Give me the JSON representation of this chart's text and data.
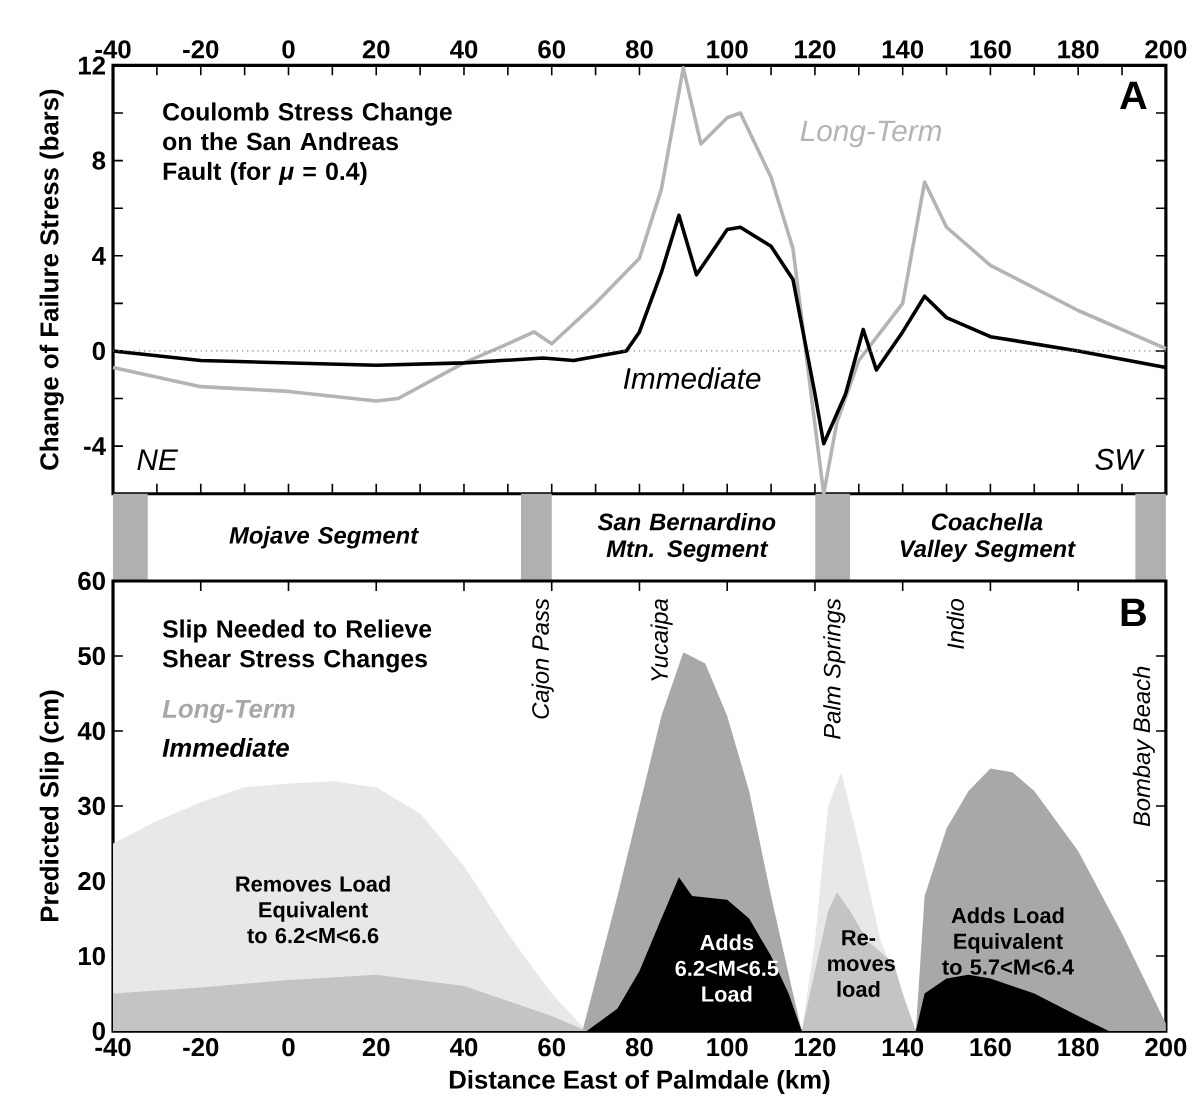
{
  "chart_data": [
    {
      "type": "line",
      "title": "Coulomb Stress Change on the San Andreas Fault (for *μ* = 0.4)",
      "ylabel": "Change of Failure Stress  (bars)",
      "xlim": [
        -40,
        200
      ],
      "xticks": [
        -40,
        {
          "value": -30,
          "label": null
        },
        -20,
        {
          "value": -10,
          "label": null
        },
        0,
        {
          "value": 10,
          "label": null
        },
        20,
        {
          "value": 30,
          "label": null
        },
        40,
        {
          "value": 50,
          "label": null
        },
        60,
        {
          "value": 70,
          "label": null
        },
        80,
        {
          "value": 90,
          "label": null
        },
        100,
        {
          "value": 110,
          "label": null
        },
        120,
        {
          "value": 130,
          "label": null
        },
        140,
        {
          "value": 150,
          "label": null
        },
        160,
        {
          "value": 170,
          "label": null
        },
        180,
        {
          "value": 190,
          "label": null
        },
        200
      ],
      "ylim": [
        -6,
        12
      ],
      "yticks": [
        -4,
        {
          "value": -2,
          "label": null
        },
        0,
        {
          "value": 2,
          "label": null
        },
        4,
        {
          "value": 6,
          "label": null
        },
        8,
        {
          "value": 10,
          "label": null
        },
        12
      ],
      "series": [
        {
          "name": "Long-Term",
          "color": "#b4b4b4",
          "x": [
            -40,
            -20,
            0,
            20,
            25,
            40,
            50,
            56,
            60,
            70,
            80,
            85,
            90,
            94,
            100,
            103,
            110,
            115,
            120,
            122,
            125,
            130,
            135,
            140,
            145,
            150,
            160,
            180,
            200
          ],
          "values": [
            -0.7,
            -1.5,
            -1.7,
            -2.1,
            -2.0,
            -0.5,
            0.3,
            0.8,
            0.3,
            2.0,
            3.9,
            6.8,
            11.9,
            8.7,
            9.8,
            10.0,
            7.3,
            4.3,
            -3.1,
            -6.0,
            -3.0,
            -0.4,
            0.8,
            2.0,
            7.1,
            5.2,
            3.6,
            1.7,
            0.1
          ]
        },
        {
          "name": "Immediate",
          "color": "#000000",
          "x": [
            -40,
            -20,
            0,
            20,
            40,
            58,
            65,
            77,
            80,
            85,
            89,
            93,
            100,
            103,
            110,
            115,
            120,
            122,
            127,
            131,
            134,
            140,
            145,
            150,
            160,
            180,
            200
          ],
          "values": [
            0,
            -0.4,
            -0.5,
            -0.6,
            -0.5,
            -0.3,
            -0.4,
            0,
            0.8,
            3.3,
            5.7,
            3.2,
            5.1,
            5.2,
            4.4,
            3.0,
            -1.8,
            -3.9,
            -1.8,
            0.9,
            -0.8,
            0.8,
            2.3,
            1.4,
            0.6,
            0,
            -0.7
          ]
        }
      ],
      "ref_lines": [
        {
          "axis": "y",
          "value": 0,
          "color": "#808080",
          "line_style": "dotted"
        }
      ],
      "annotations": [
        "A",
        "NE",
        "SW",
        "Mojave Segment",
        "San Bernardino Mtn. Segment",
        "Coachella Valley Segment"
      ]
    },
    {
      "type": "area",
      "title": "Slip Needed to Relieve Shear Stress Changes",
      "xlabel": "Distance East of Palmdale  (km)",
      "ylabel": "Predicted Slip  (cm)",
      "xlim": [
        -40,
        200
      ],
      "xticks": [
        -40,
        -20,
        0,
        20,
        40,
        60,
        80,
        100,
        120,
        140,
        160,
        180,
        200
      ],
      "ylim": [
        0,
        60
      ],
      "yticks": [
        0,
        10,
        20,
        30,
        40,
        50,
        60
      ],
      "legend": "top left",
      "series": [
        {
          "color": "#e8e8e8",
          "x": [
            -40,
            -30,
            -20,
            -10,
            0,
            10,
            20,
            30,
            40,
            50,
            60,
            68,
            90,
            117,
            120,
            123,
            126,
            130,
            135,
            140,
            143
          ],
          "values": [
            25,
            28,
            30.5,
            32.5,
            33,
            33.3,
            32.5,
            29,
            22,
            13,
            5,
            0,
            null,
            0,
            12,
            30,
            34.5,
            25,
            12,
            5,
            0
          ]
        },
        {
          "name": "Long-Term",
          "color": "#a8a8a8",
          "x": [
            67,
            75,
            80,
            85,
            90,
            95,
            100,
            105,
            110,
            115,
            117,
            130,
            143,
            145,
            150,
            155,
            160,
            165,
            170,
            180,
            190,
            200
          ],
          "values": [
            0,
            18,
            30,
            42,
            50.5,
            49,
            42,
            32,
            18,
            5,
            0,
            null,
            0,
            18,
            27,
            32,
            35,
            34.5,
            32,
            24,
            13,
            1
          ]
        },
        {
          "color": "#c4c4c4",
          "x": [
            -40,
            -20,
            0,
            20,
            40,
            60,
            68,
            90,
            117,
            120,
            123,
            125,
            128,
            132,
            138,
            140,
            143
          ],
          "values": [
            5,
            5.8,
            6.8,
            7.5,
            6,
            2,
            0,
            null,
            0,
            8,
            16,
            18.5,
            16,
            12,
            9,
            5,
            0
          ]
        },
        {
          "name": "Immediate",
          "color": "#000000",
          "x": [
            68,
            75,
            80,
            85,
            89,
            92,
            100,
            105,
            110,
            114,
            117,
            130,
            143,
            145,
            150,
            155,
            160,
            170,
            180,
            187
          ],
          "values": [
            0,
            3,
            8,
            15,
            20.5,
            18,
            17.5,
            15,
            10,
            5,
            0,
            null,
            0,
            5,
            7,
            7.5,
            7,
            5,
            2,
            0
          ]
        }
      ],
      "annotations": [
        "B",
        "Removes Load Equivalent to 6.2<M<6.6",
        "Adds 6.2<M<6.5 Load",
        "Re-moves load",
        "Adds Load Equivalent to 5.7<M<6.4",
        "Cajon Pass",
        "Yucaipa",
        "Palm Springs",
        "Indio",
        "Bombay Beach"
      ]
    }
  ]
}
